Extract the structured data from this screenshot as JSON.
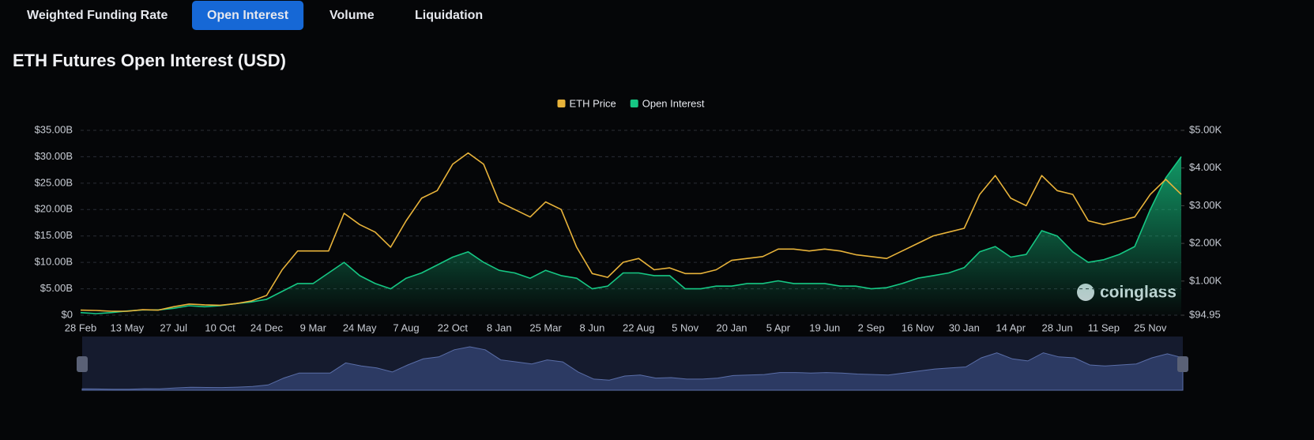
{
  "tabs": [
    "Weighted Funding Rate",
    "Open Interest",
    "Volume",
    "Liquidation"
  ],
  "active_tab": 1,
  "watermark": "coinglass",
  "chart_data": {
    "type": "line",
    "title": "ETH Futures Open Interest (USD)",
    "categories": [
      "28 Feb",
      null,
      null,
      "13 May",
      null,
      null,
      "27 Jul",
      null,
      null,
      "10 Oct",
      null,
      null,
      "24 Dec",
      null,
      null,
      "9 Mar",
      null,
      null,
      "24 May",
      null,
      null,
      "7 Aug",
      null,
      null,
      "22 Oct",
      null,
      null,
      "8 Jan",
      null,
      null,
      "25 Mar",
      null,
      null,
      "8 Jun",
      null,
      null,
      "22 Aug",
      null,
      null,
      "5 Nov",
      null,
      null,
      "20 Jan",
      null,
      null,
      "5 Apr",
      null,
      null,
      "19 Jun",
      null,
      null,
      "2 Sep",
      null,
      null,
      "16 Nov",
      null,
      null,
      "30 Jan",
      null,
      null,
      "14 Apr",
      null,
      null,
      "28 Jun",
      null,
      null,
      "11 Sep",
      null,
      null,
      "25 Nov",
      null,
      null
    ],
    "series": [
      {
        "name": "ETH Price",
        "color": "#e8b33a",
        "axis": "y2",
        "values": [
          230,
          220,
          200,
          200,
          240,
          230,
          320,
          390,
          370,
          360,
          400,
          470,
          620,
          1300,
          1800,
          1800,
          1800,
          2800,
          2500,
          2300,
          1900,
          2600,
          3200,
          3400,
          4100,
          4400,
          4100,
          3100,
          2900,
          2700,
          3100,
          2900,
          1900,
          1200,
          1100,
          1500,
          1600,
          1300,
          1350,
          1200,
          1200,
          1300,
          1550,
          1600,
          1650,
          1850,
          1850,
          1800,
          1850,
          1800,
          1700,
          1650,
          1600,
          1800,
          2000,
          2200,
          2300,
          2400,
          3300,
          3800,
          3200,
          3000,
          3800,
          3400,
          3300,
          2600,
          2500,
          2600,
          2700,
          3300,
          3700,
          3300
        ]
      },
      {
        "name": "Open Interest",
        "color": "#16c784",
        "fill": "area",
        "values": [
          0.5,
          0.3,
          0.5,
          0.8,
          1.0,
          1.0,
          1.3,
          1.8,
          1.6,
          1.8,
          2.2,
          2.5,
          3.0,
          4.5,
          6.0,
          6.0,
          8.0,
          10.0,
          7.5,
          6.0,
          5.0,
          7.0,
          8.0,
          9.5,
          11.0,
          12.0,
          10.0,
          8.5,
          8.0,
          7.0,
          8.5,
          7.5,
          7.0,
          5.0,
          5.5,
          8.0,
          8.0,
          7.5,
          7.5,
          5.0,
          5.0,
          5.5,
          5.5,
          6.0,
          6.0,
          6.5,
          6.0,
          6.0,
          6.0,
          5.5,
          5.5,
          5.0,
          5.2,
          6.0,
          7.0,
          7.5,
          8.0,
          9.0,
          12.0,
          13.0,
          11.0,
          11.5,
          16.0,
          15.0,
          12.0,
          10.0,
          10.5,
          11.5,
          13.0,
          20.0,
          26.0,
          30.0
        ]
      }
    ],
    "ylim": [
      0,
      35
    ],
    "yticks": [
      {
        "value": 0,
        "label": "$0"
      },
      {
        "value": 5,
        "label": "$5.00B"
      },
      {
        "value": 10,
        "label": "$10.00B"
      },
      {
        "value": 15,
        "label": "$15.00B"
      },
      {
        "value": 20,
        "label": "$20.00B"
      },
      {
        "value": 25,
        "label": "$25.00B"
      },
      {
        "value": 30,
        "label": "$30.00B"
      },
      {
        "value": 35,
        "label": "$35.00B"
      }
    ],
    "y2lim": [
      94.95,
      5000
    ],
    "y2ticks": [
      {
        "value": 94.95,
        "label": "$94.95"
      },
      {
        "value": 1000,
        "label": "$1.00K"
      },
      {
        "value": 2000,
        "label": "$2.00K"
      },
      {
        "value": 3000,
        "label": "$3.00K"
      },
      {
        "value": 4000,
        "label": "$4.00K"
      },
      {
        "value": 5000,
        "label": "$5.00K"
      }
    ],
    "grid": true,
    "legend": "top"
  }
}
